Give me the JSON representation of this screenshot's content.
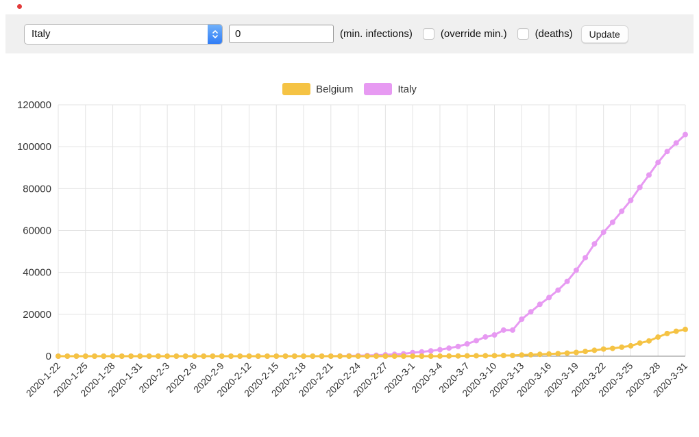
{
  "toolbar": {
    "country_select": {
      "value": "Italy"
    },
    "min_input": {
      "value": "0"
    },
    "min_infections_label": "(min. infections)",
    "override_min_label": "(override min.)",
    "deaths_label": "(deaths)",
    "update_button_label": "Update"
  },
  "chart_data": {
    "type": "line",
    "title": "",
    "xlabel": "",
    "ylabel": "",
    "ylim": [
      0,
      120000
    ],
    "y_ticks": [
      0,
      20000,
      40000,
      60000,
      80000,
      100000,
      120000
    ],
    "x_tick_every": 3,
    "grid": true,
    "legend_position": "top",
    "x": [
      "2020-1-22",
      "2020-1-23",
      "2020-1-24",
      "2020-1-25",
      "2020-1-26",
      "2020-1-27",
      "2020-1-28",
      "2020-1-29",
      "2020-1-30",
      "2020-1-31",
      "2020-2-1",
      "2020-2-2",
      "2020-2-3",
      "2020-2-4",
      "2020-2-5",
      "2020-2-6",
      "2020-2-7",
      "2020-2-8",
      "2020-2-9",
      "2020-2-10",
      "2020-2-11",
      "2020-2-12",
      "2020-2-13",
      "2020-2-14",
      "2020-2-15",
      "2020-2-16",
      "2020-2-17",
      "2020-2-18",
      "2020-2-19",
      "2020-2-20",
      "2020-2-21",
      "2020-2-22",
      "2020-2-23",
      "2020-2-24",
      "2020-2-25",
      "2020-2-26",
      "2020-2-27",
      "2020-2-28",
      "2020-2-29",
      "2020-3-1",
      "2020-3-2",
      "2020-3-3",
      "2020-3-4",
      "2020-3-5",
      "2020-3-6",
      "2020-3-7",
      "2020-3-8",
      "2020-3-9",
      "2020-3-10",
      "2020-3-11",
      "2020-3-12",
      "2020-3-13",
      "2020-3-14",
      "2020-3-15",
      "2020-3-16",
      "2020-3-17",
      "2020-3-18",
      "2020-3-19",
      "2020-3-20",
      "2020-3-21",
      "2020-3-22",
      "2020-3-23",
      "2020-3-24",
      "2020-3-25",
      "2020-3-26",
      "2020-3-27",
      "2020-3-28",
      "2020-3-29",
      "2020-3-30",
      "2020-3-31"
    ],
    "series": [
      {
        "name": "Belgium",
        "color": "#f5c344",
        "values": [
          0,
          0,
          0,
          0,
          0,
          0,
          0,
          0,
          0,
          0,
          0,
          0,
          0,
          1,
          1,
          1,
          1,
          1,
          1,
          1,
          1,
          1,
          1,
          1,
          1,
          1,
          1,
          1,
          1,
          1,
          1,
          1,
          1,
          1,
          1,
          1,
          1,
          1,
          1,
          2,
          8,
          13,
          23,
          50,
          109,
          169,
          200,
          239,
          267,
          314,
          314,
          559,
          689,
          886,
          1058,
          1243,
          1486,
          1795,
          2257,
          2815,
          3401,
          3743,
          4269,
          4937,
          6235,
          7284,
          9134,
          10836,
          11899,
          12775
        ]
      },
      {
        "name": "Italy",
        "color": "#e79af2",
        "values": [
          0,
          0,
          0,
          0,
          0,
          0,
          0,
          0,
          0,
          2,
          2,
          2,
          2,
          2,
          2,
          2,
          3,
          3,
          3,
          3,
          3,
          3,
          3,
          3,
          3,
          3,
          3,
          3,
          3,
          3,
          20,
          62,
          155,
          229,
          322,
          453,
          655,
          888,
          1128,
          1694,
          2036,
          2502,
          3089,
          3858,
          4636,
          5883,
          7375,
          9172,
          10149,
          12462,
          12462,
          17660,
          21157,
          24747,
          27980,
          31506,
          35713,
          41035,
          47021,
          53578,
          59138,
          63927,
          69176,
          74386,
          80589,
          86498,
          92472,
          97689,
          101739,
          105792
        ]
      }
    ]
  }
}
